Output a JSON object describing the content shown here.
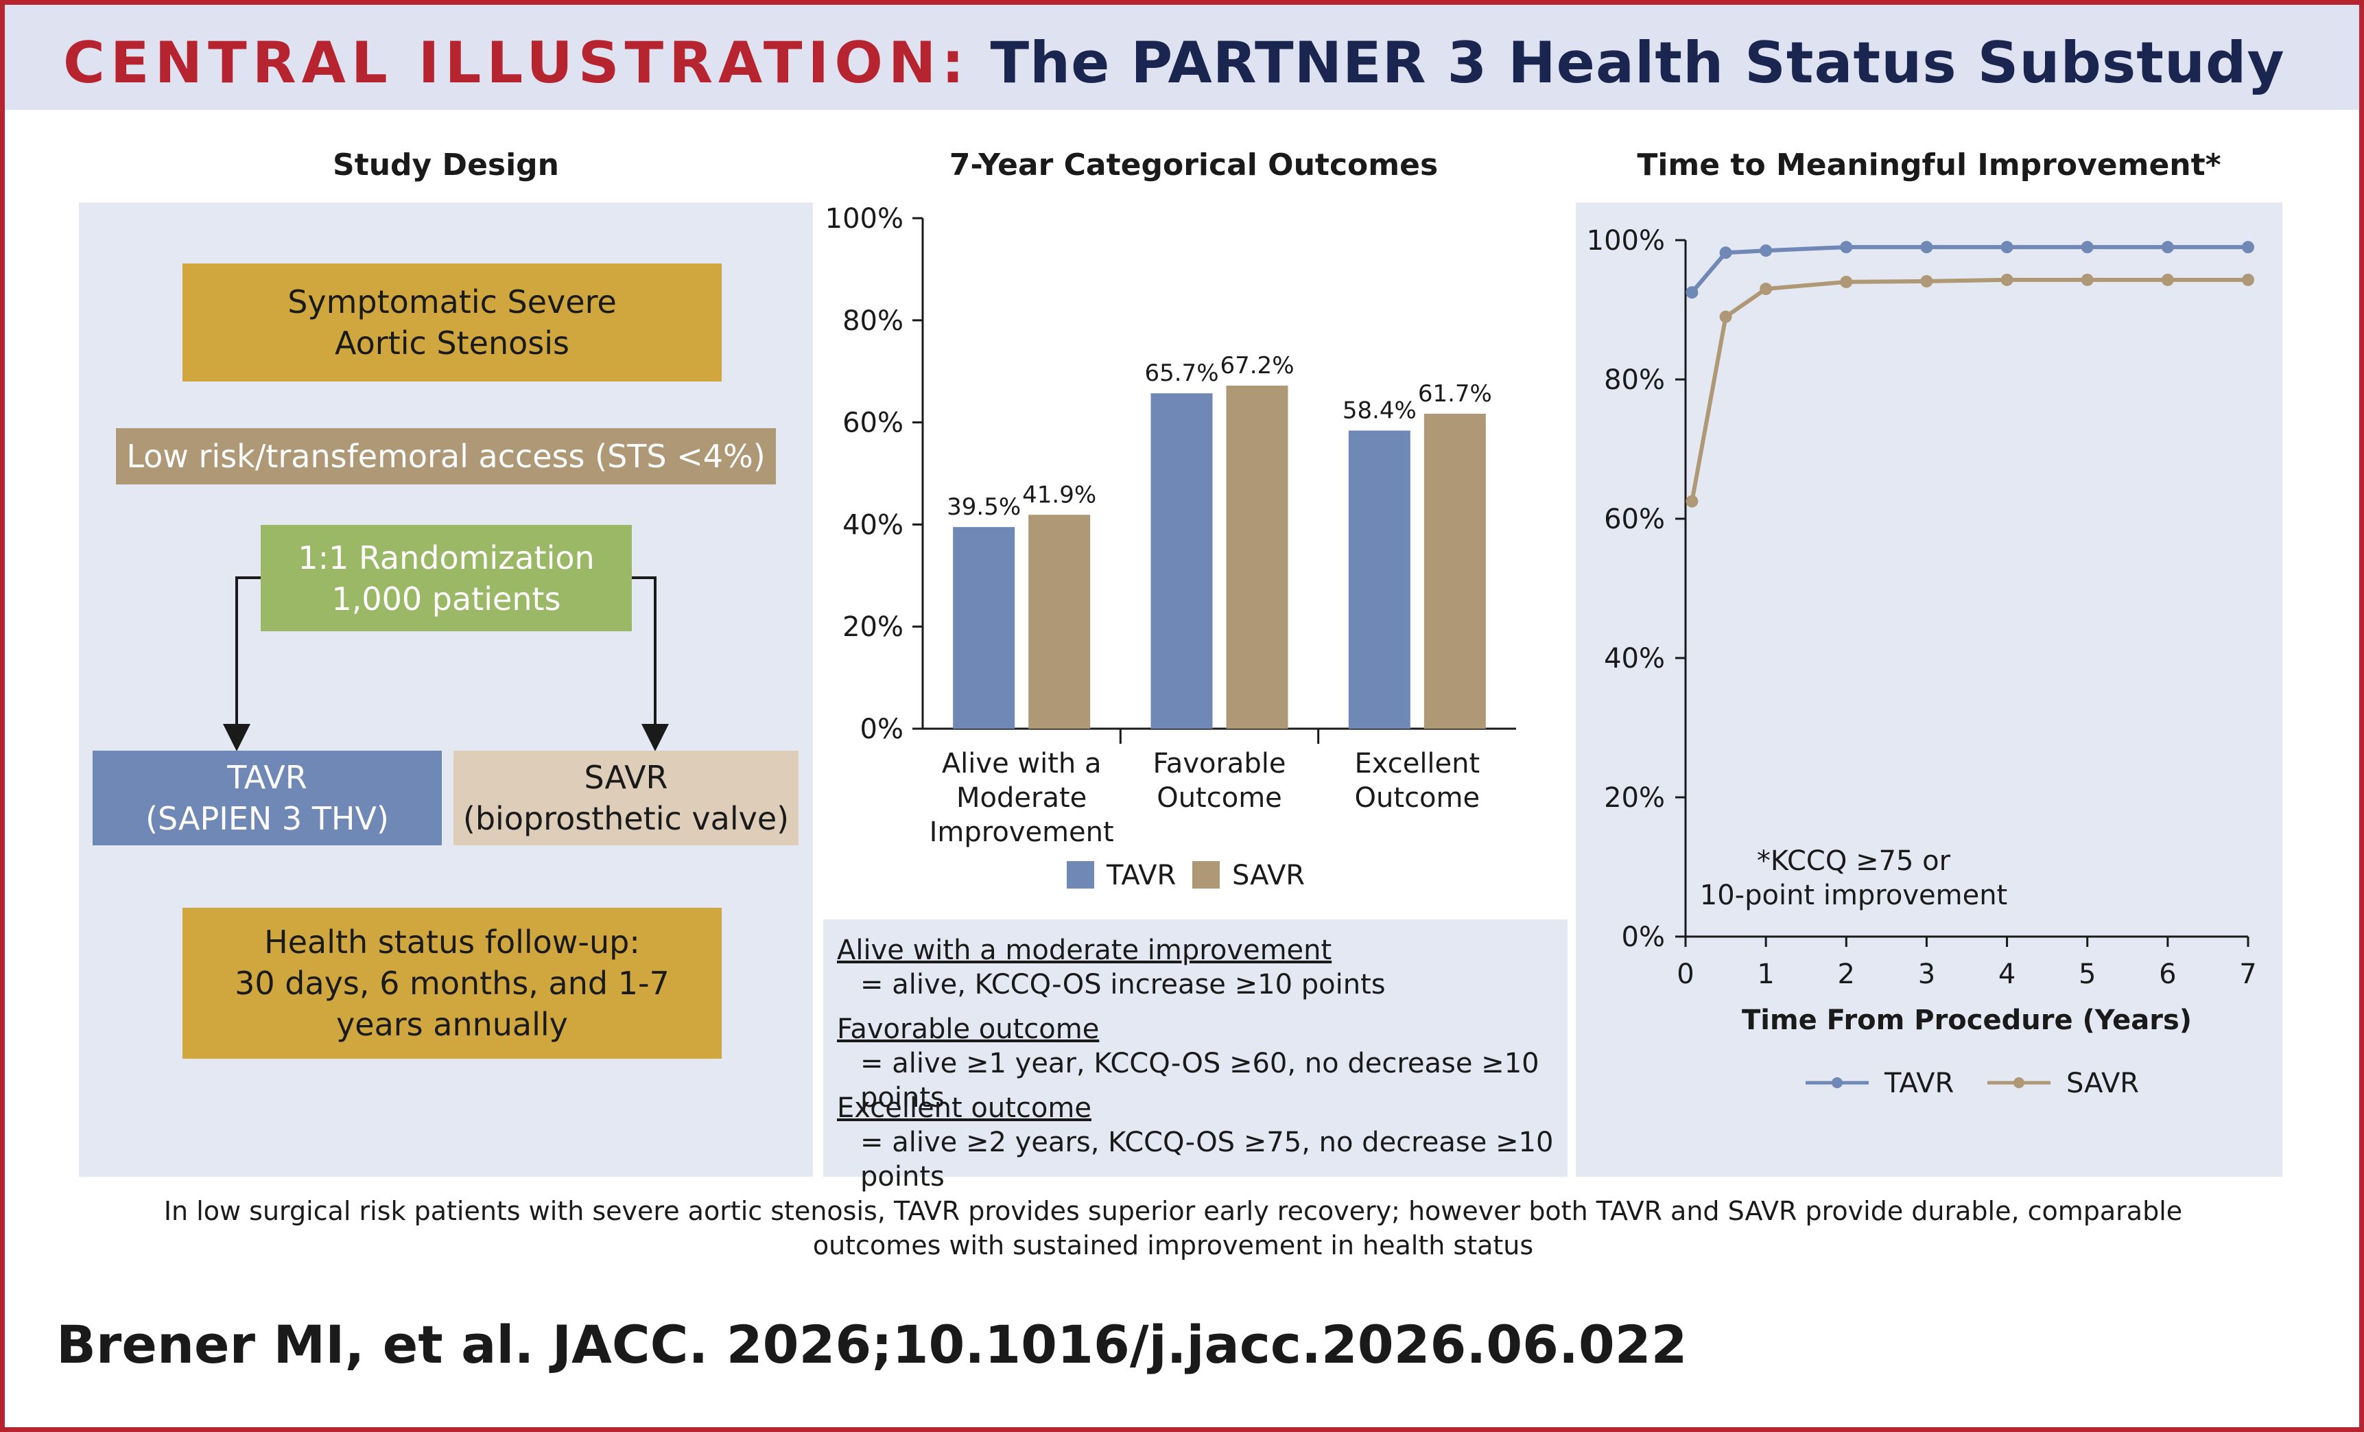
{
  "header": {
    "label": "CENTRAL ILLUSTRATION:",
    "title": "The PARTNER 3 Health Status Substudy"
  },
  "study_design": {
    "title": "Study Design",
    "population": "Symptomatic Severe\nAortic Stenosis",
    "criteria": "Low risk/transfemoral access (STS <4%)",
    "randomization": "1:1 Randomization\n1,000 patients",
    "arm_tavr": "TAVR\n(SAPIEN 3 THV)",
    "arm_savr": "SAVR\n(bioprosthetic valve)",
    "followup": "Health status follow-up:\n30 days, 6 months, and 1-7\nyears annually"
  },
  "colors": {
    "red": "#b5242f",
    "navy": "#1b2650",
    "tavr": "#7088b5",
    "savr": "#ae9875",
    "gold": "#cfa73e",
    "green": "#9bb866",
    "panel": "#e4e8f3"
  },
  "chart_data": [
    {
      "type": "bar",
      "title": "7-Year Categorical Outcomes",
      "categories": [
        "Alive with a\nModerate\nImprovement",
        "Favorable\nOutcome",
        "Excellent\nOutcome"
      ],
      "series": [
        {
          "name": "TAVR",
          "values": [
            39.5,
            65.7,
            58.4
          ],
          "labels": [
            "39.5%",
            "65.7%",
            "58.4%"
          ],
          "color": "#7088b5"
        },
        {
          "name": "SAVR",
          "values": [
            41.9,
            67.2,
            61.7
          ],
          "labels": [
            "41.9%",
            "67.2%",
            "61.7%"
          ],
          "color": "#ae9875"
        }
      ],
      "ylim": [
        0,
        100
      ],
      "yticks": [
        0,
        20,
        40,
        60,
        80,
        100
      ],
      "ytick_labels": [
        "0%",
        "20%",
        "40%",
        "60%",
        "80%",
        "100%"
      ],
      "legend": "bottom",
      "grid": false
    },
    {
      "type": "line",
      "title": "Time to Meaningful Improvement*",
      "xlabel": "Time From Procedure (Years)",
      "xlim": [
        0,
        7
      ],
      "ylim": [
        0,
        100
      ],
      "xticks": [
        0,
        1,
        2,
        3,
        4,
        5,
        6,
        7
      ],
      "xtick_labels": [
        "0",
        "1",
        "2",
        "3",
        "4",
        "5",
        "6",
        "7"
      ],
      "yticks": [
        0,
        20,
        40,
        60,
        80,
        100
      ],
      "ytick_labels": [
        "0%",
        "20%",
        "40%",
        "60%",
        "80%",
        "100%"
      ],
      "series": [
        {
          "name": "TAVR",
          "color": "#7088b5",
          "x": [
            0.08,
            0.5,
            1,
            2,
            3,
            4,
            5,
            6,
            7
          ],
          "y": [
            92.5,
            98.2,
            98.5,
            99.0,
            99.0,
            99.0,
            99.0,
            99.0,
            99.0
          ]
        },
        {
          "name": "SAVR",
          "color": "#ae9875",
          "x": [
            0.08,
            0.5,
            1,
            2,
            3,
            4,
            5,
            6,
            7
          ],
          "y": [
            62.5,
            89.0,
            93.0,
            94.0,
            94.1,
            94.3,
            94.3,
            94.3,
            94.3
          ]
        }
      ],
      "annotation": "*KCCQ ≥75 or\n10-point improvement",
      "legend": "bottom",
      "grid": false
    }
  ],
  "definitions": [
    {
      "term": "Alive with a moderate improvement",
      "desc": "= alive, KCCQ-OS increase ≥10 points"
    },
    {
      "term": "Favorable outcome",
      "desc": "= alive ≥1 year, KCCQ-OS ≥60, no decrease ≥10 points"
    },
    {
      "term": "Excellent outcome",
      "desc": "= alive ≥2 years, KCCQ-OS ≥75, no decrease ≥10 points"
    }
  ],
  "caption": "In low surgical risk patients with severe aortic stenosis, TAVR provides superior early recovery; however both TAVR and SAVR provide durable, comparable outcomes with sustained improvement in health status",
  "citation": "Brener MI, et al. JACC. 2026;10.1016/j.jacc.2026.06.022"
}
